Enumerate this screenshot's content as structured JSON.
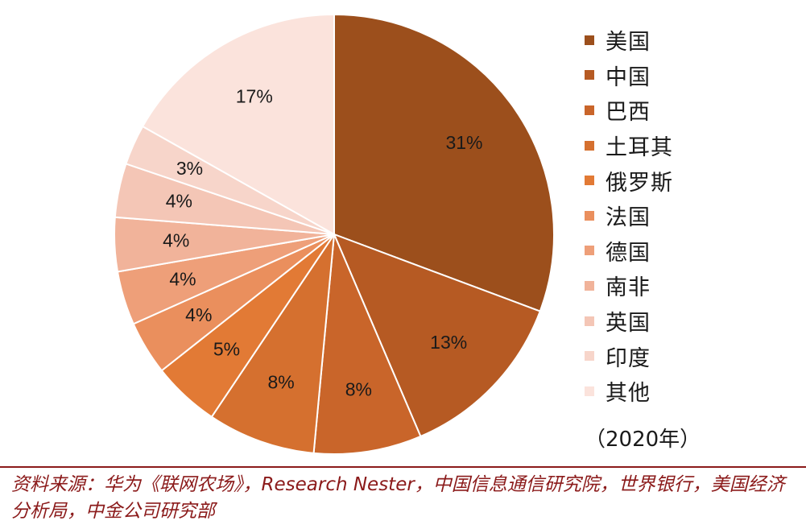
{
  "chart_data": {
    "type": "pie",
    "categories": [
      "美国",
      "中国",
      "巴西",
      "土耳其",
      "俄罗斯",
      "法国",
      "德国",
      "南非",
      "英国",
      "印度",
      "其他"
    ],
    "values": [
      31,
      13,
      8,
      8,
      5,
      4,
      4,
      4,
      4,
      3,
      17
    ],
    "value_labels": [
      "31%",
      "13%",
      "8%",
      "8%",
      "5%",
      "4%",
      "4%",
      "4%",
      "4%",
      "3%",
      "17%"
    ],
    "colors": [
      "#9c4f1c",
      "#b65a23",
      "#c9652a",
      "#d5702f",
      "#e27a35",
      "#ea8f5d",
      "#ee9f79",
      "#f1b39a",
      "#f4c6b6",
      "#f7d5ca",
      "#fbe3dc"
    ],
    "start_angle_deg": 0,
    "direction": "clockwise",
    "legend_position": "right",
    "note": "（2020年）"
  },
  "source_text": "资料来源：华为《联网农场》，Research Nester，中国信息通信研究院，世界银行，美国经济分析局，中金公司研究部"
}
